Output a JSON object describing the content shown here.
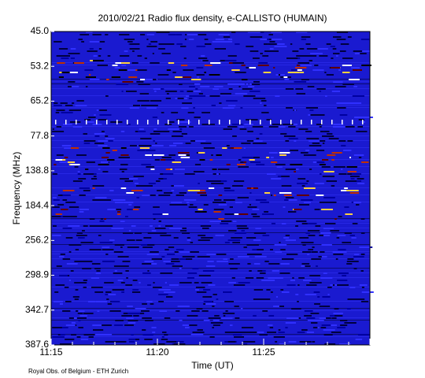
{
  "chart_data": {
    "type": "spectrogram",
    "title": "2010/02/21  Radio flux density, e-CALLISTO (HUMAIN)",
    "x_label": "Time (UT)",
    "y_label": "Frequency (MHz)",
    "x_labels": [
      "11:15",
      "11:20",
      "11:25"
    ],
    "y_labels": [
      "45.0",
      "53.2",
      "65.2",
      "77.8",
      "138.8",
      "184.4",
      "256.2",
      "298.9",
      "342.7",
      "387.6"
    ],
    "credit": "Royal Obs. of Belgium - ETH Zurich"
  }
}
